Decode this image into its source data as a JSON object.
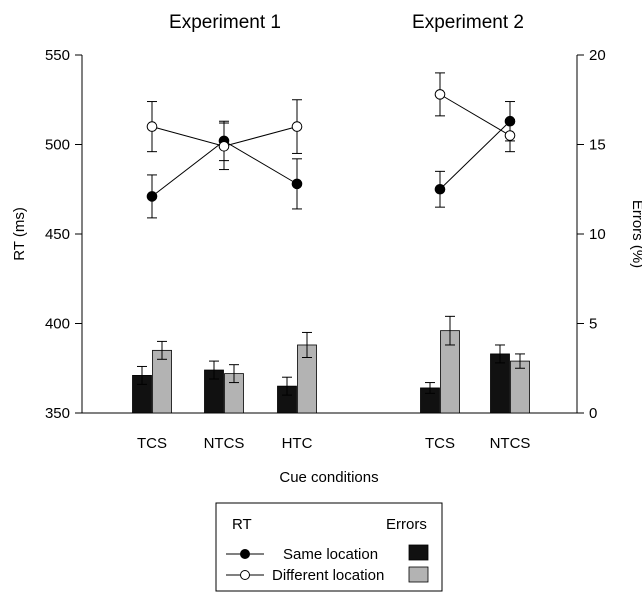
{
  "chart_data": {
    "type": "bar+line",
    "panels": [
      {
        "title": "Experiment 1",
        "categories": [
          "TCS",
          "NTCS",
          "HTC"
        ]
      },
      {
        "title": "Experiment 2",
        "categories": [
          "TCS",
          "NTCS"
        ]
      }
    ],
    "xlabel": "Cue conditions",
    "ylabel_left": "RT (ms)",
    "ylabel_right": "Errors (%)",
    "ylim_left": [
      350,
      550
    ],
    "ylim_right": [
      0,
      20
    ],
    "yticks_left": [
      "350",
      "400",
      "450",
      "500",
      "550"
    ],
    "yticks_right": [
      "0",
      "5",
      "10",
      "15",
      "20"
    ],
    "grid": false,
    "rt_series": [
      {
        "name": "Same location",
        "marker": "filled-circle",
        "color": "#000000",
        "panels": [
          {
            "values": [
              471,
              502,
              478
            ],
            "errors": [
              12,
              11,
              14
            ]
          },
          {
            "values": [
              475,
              513
            ],
            "errors": [
              10,
              11
            ]
          }
        ]
      },
      {
        "name": "Different location",
        "marker": "open-circle",
        "color": "#000000",
        "panels": [
          {
            "values": [
              510,
              499,
              510
            ],
            "errors": [
              14,
              13,
              15
            ]
          },
          {
            "values": [
              528,
              505
            ],
            "errors": [
              12,
              9
            ]
          }
        ]
      }
    ],
    "error_series": [
      {
        "name": "Same location",
        "color": "#111111",
        "panels": [
          {
            "values": [
              2.1,
              2.4,
              1.5
            ],
            "errors": [
              0.5,
              0.5,
              0.5
            ]
          },
          {
            "values": [
              1.4,
              3.3
            ],
            "errors": [
              0.3,
              0.5
            ]
          }
        ]
      },
      {
        "name": "Different location",
        "color": "#b3b3b3",
        "panels": [
          {
            "values": [
              3.5,
              2.2,
              3.8
            ],
            "errors": [
              0.5,
              0.5,
              0.7
            ]
          },
          {
            "values": [
              4.6,
              2.9
            ],
            "errors": [
              0.8,
              0.4
            ]
          }
        ]
      }
    ],
    "legend": {
      "placement": "bottom-center",
      "rt_header": "RT",
      "errors_header": "Errors",
      "entries": [
        "Same location",
        "Different location"
      ]
    }
  }
}
